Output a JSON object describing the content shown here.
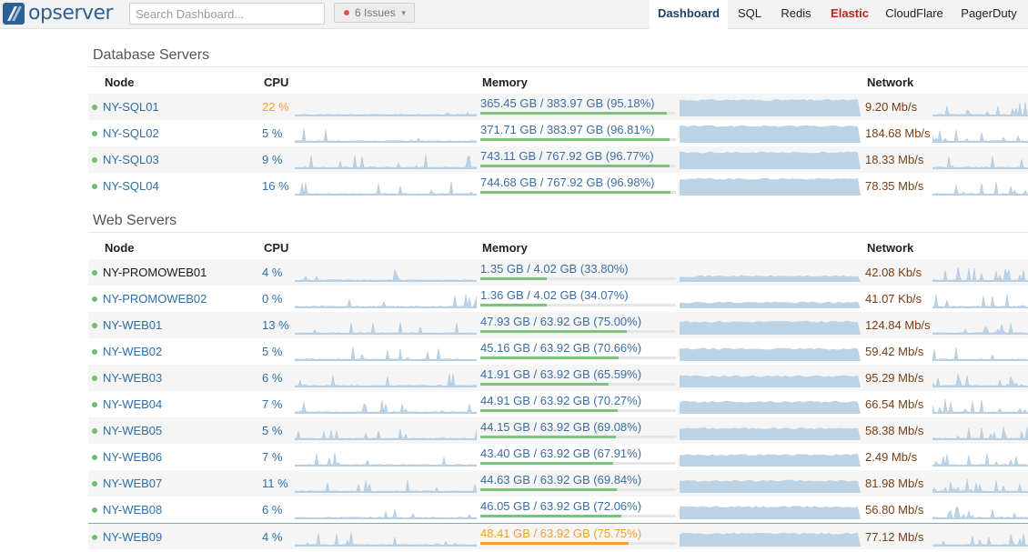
{
  "app": {
    "logo_text": "opserver"
  },
  "search": {
    "placeholder": "Search Dashboard..."
  },
  "issues": {
    "label": "6 Issues"
  },
  "tabs": [
    {
      "label": "Dashboard",
      "state": "active"
    },
    {
      "label": "SQL",
      "state": "normal"
    },
    {
      "label": "Redis",
      "state": "normal"
    },
    {
      "label": "Elastic",
      "state": "warning"
    },
    {
      "label": "CloudFlare",
      "state": "normal"
    },
    {
      "label": "PagerDuty",
      "state": "normal"
    }
  ],
  "columns": {
    "node": "Node",
    "cpu": "CPU",
    "memory": "Memory",
    "network": "Network"
  },
  "colors": {
    "accent": "#2e6fa8",
    "status_ok": "#6fbf6f",
    "warning": "#f0a030",
    "network_text": "#7a3d12",
    "spark_fill": "#bcd3e6"
  },
  "sections": [
    {
      "title": "Database Servers",
      "servers": [
        {
          "name": "NY-SQL01",
          "cpu": "22 %",
          "cpu_warn": true,
          "memory": "365.45 GB / 383.97 GB (95.18%)",
          "mem_pct": 95.18,
          "mem_warn": false,
          "network": "9.20 Mb/s"
        },
        {
          "name": "NY-SQL02",
          "cpu": "5 %",
          "cpu_warn": false,
          "memory": "371.71 GB / 383.97 GB (96.81%)",
          "mem_pct": 96.81,
          "mem_warn": false,
          "network": "184.68 Mb/s"
        },
        {
          "name": "NY-SQL03",
          "cpu": "9 %",
          "cpu_warn": false,
          "memory": "743.11 GB / 767.92 GB (96.77%)",
          "mem_pct": 96.77,
          "mem_warn": false,
          "network": "18.33 Mb/s"
        },
        {
          "name": "NY-SQL04",
          "cpu": "16 %",
          "cpu_warn": false,
          "memory": "744.68 GB / 767.92 GB (96.98%)",
          "mem_pct": 96.98,
          "mem_warn": false,
          "network": "78.35 Mb/s"
        }
      ]
    },
    {
      "title": "Web Servers",
      "servers": [
        {
          "name": "NY-PROMOWEB01",
          "cpu": "4 %",
          "cpu_warn": false,
          "memory": "1.35 GB / 4.02 GB (33.80%)",
          "mem_pct": 33.8,
          "mem_warn": false,
          "network": "42.08 Kb/s",
          "plain": true
        },
        {
          "name": "NY-PROMOWEB02",
          "cpu": "0 %",
          "cpu_warn": false,
          "memory": "1.36 GB / 4.02 GB (34.07%)",
          "mem_pct": 34.07,
          "mem_warn": false,
          "network": "41.07 Kb/s"
        },
        {
          "name": "NY-WEB01",
          "cpu": "13 %",
          "cpu_warn": false,
          "memory": "47.93 GB / 63.92 GB (75.00%)",
          "mem_pct": 75.0,
          "mem_warn": false,
          "network": "124.84 Mb/s"
        },
        {
          "name": "NY-WEB02",
          "cpu": "5 %",
          "cpu_warn": false,
          "memory": "45.16 GB / 63.92 GB (70.66%)",
          "mem_pct": 70.66,
          "mem_warn": false,
          "network": "59.42 Mb/s"
        },
        {
          "name": "NY-WEB03",
          "cpu": "6 %",
          "cpu_warn": false,
          "memory": "41.91 GB / 63.92 GB (65.59%)",
          "mem_pct": 65.59,
          "mem_warn": false,
          "network": "95.29 Mb/s"
        },
        {
          "name": "NY-WEB04",
          "cpu": "7 %",
          "cpu_warn": false,
          "memory": "44.91 GB / 63.92 GB (70.27%)",
          "mem_pct": 70.27,
          "mem_warn": false,
          "network": "66.54 Mb/s"
        },
        {
          "name": "NY-WEB05",
          "cpu": "5 %",
          "cpu_warn": false,
          "memory": "44.15 GB / 63.92 GB (69.08%)",
          "mem_pct": 69.08,
          "mem_warn": false,
          "network": "58.38 Mb/s"
        },
        {
          "name": "NY-WEB06",
          "cpu": "7 %",
          "cpu_warn": false,
          "memory": "43.40 GB / 63.92 GB (67.91%)",
          "mem_pct": 67.91,
          "mem_warn": false,
          "network": "2.49 Mb/s"
        },
        {
          "name": "NY-WEB07",
          "cpu": "11 %",
          "cpu_warn": false,
          "memory": "44.63 GB / 63.92 GB (69.84%)",
          "mem_pct": 69.84,
          "mem_warn": false,
          "network": "81.98 Mb/s"
        },
        {
          "name": "NY-WEB08",
          "cpu": "6 %",
          "cpu_warn": false,
          "memory": "46.05 GB / 63.92 GB (72.06%)",
          "mem_pct": 72.06,
          "mem_warn": false,
          "network": "56.80 Mb/s"
        },
        {
          "name": "NY-WEB09",
          "cpu": "4 %",
          "cpu_warn": false,
          "memory": "48.41 GB / 63.92 GB (75.75%)",
          "mem_pct": 75.75,
          "mem_warn": true,
          "network": "77.12 Mb/s"
        }
      ]
    }
  ]
}
